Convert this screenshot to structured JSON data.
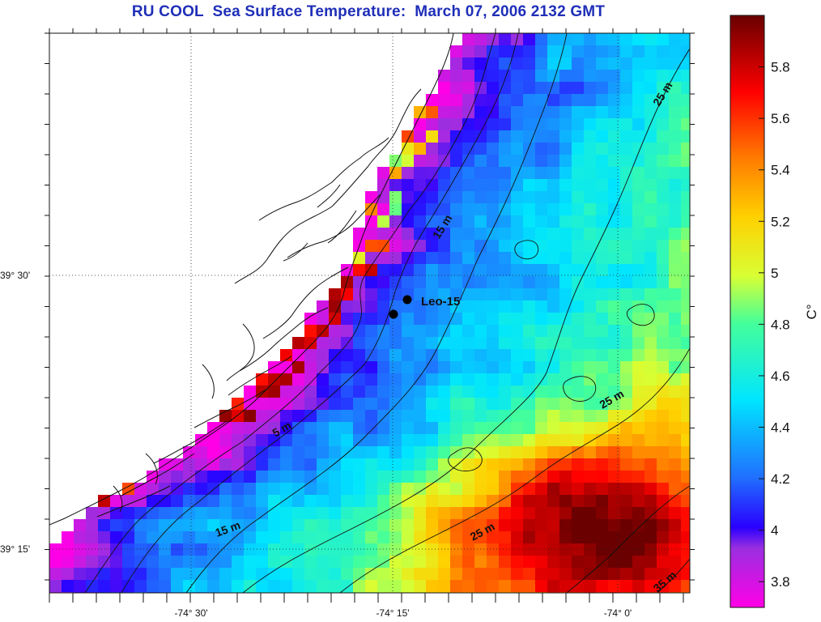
{
  "title": "RU COOL  Sea Surface Temperature:  March 07, 2006 2132 GMT",
  "axes": {
    "x_ticks": [
      "-74° 30'",
      "-74° 15'",
      "-74° 0'"
    ],
    "y_ticks": [
      "39° 30'",
      "39° 15'"
    ]
  },
  "colorbar": {
    "unit": "C°",
    "ticks": [
      "5.8",
      "5.6",
      "5.4",
      "5.2",
      "5",
      "4.8",
      "4.6",
      "4.4",
      "4.2",
      "4",
      "3.8"
    ],
    "range": [
      3.7,
      6.0
    ]
  },
  "station": {
    "label": "Leo-15"
  },
  "contour_labels": [
    "25 m",
    "15 m",
    "25 m",
    "5 m",
    "15 m",
    "25 m",
    "35 m"
  ],
  "colors": {
    "title": "#1f2fb8",
    "cold": "#ff00e6",
    "warm": "#7a0000"
  }
}
